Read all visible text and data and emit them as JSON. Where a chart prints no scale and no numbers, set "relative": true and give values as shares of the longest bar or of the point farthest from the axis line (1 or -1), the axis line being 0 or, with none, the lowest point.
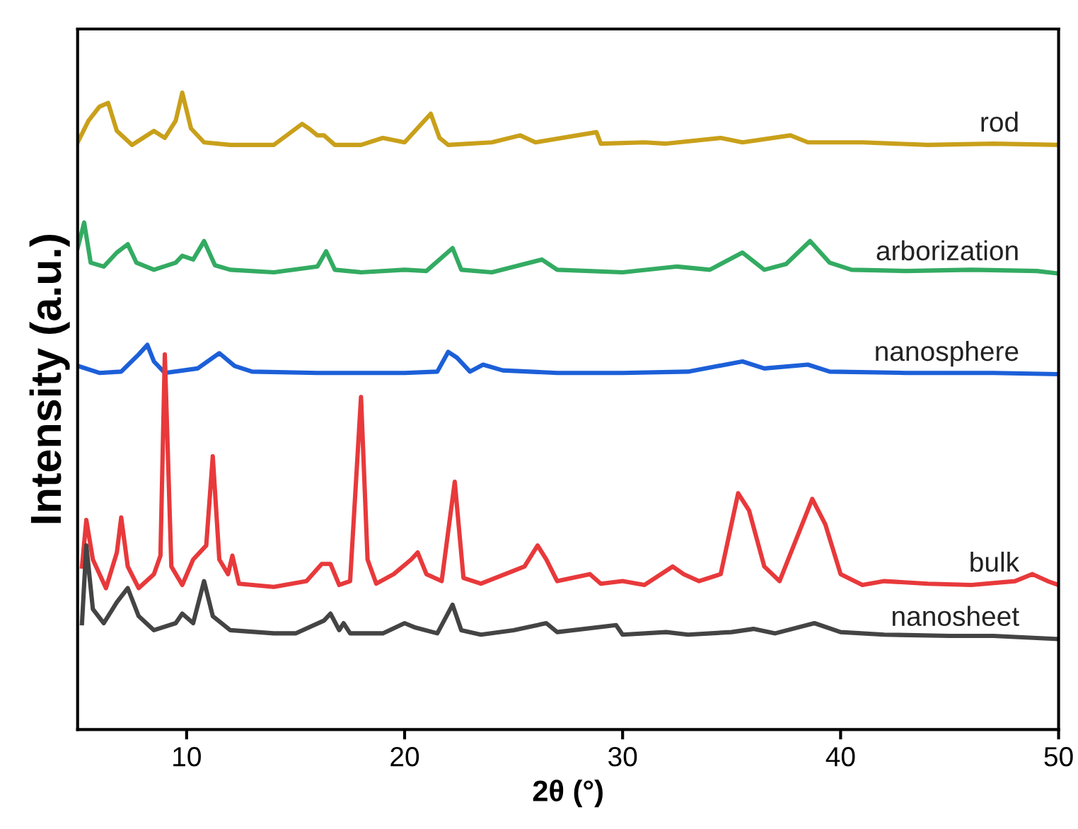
{
  "chart_data": {
    "type": "line",
    "relative": true,
    "xlabel": "2θ (°)",
    "ylabel": "Intensity (a.u.)",
    "xlim": [
      5,
      50
    ],
    "xticks": [
      10,
      20,
      30,
      40,
      50
    ],
    "grid": false,
    "legend": false,
    "tick_labels": "x",
    "marker": "none",
    "line_style": "solid",
    "series": [
      {
        "name": "rod",
        "color": "#c9a01a",
        "x": [
          5,
          5.5,
          6.0,
          6.4,
          6.8,
          7.5,
          8.5,
          9,
          9.5,
          9.8,
          10.2,
          10.8,
          12,
          14,
          15.3,
          15.6,
          16,
          16.3,
          16.8,
          18,
          19,
          20,
          21.2,
          21.6,
          22,
          24,
          25.3,
          26,
          28.8,
          29,
          31,
          32,
          34.5,
          35.5,
          37.7,
          38.5,
          41,
          44,
          47,
          50
        ],
        "values": [
          0.922,
          0.956,
          0.978,
          0.984,
          0.94,
          0.918,
          0.94,
          0.929,
          0.956,
          1.0,
          0.944,
          0.922,
          0.918,
          0.918,
          0.951,
          0.944,
          0.933,
          0.933,
          0.918,
          0.918,
          0.929,
          0.922,
          0.967,
          0.929,
          0.918,
          0.922,
          0.933,
          0.922,
          0.938,
          0.92,
          0.922,
          0.92,
          0.929,
          0.922,
          0.933,
          0.922,
          0.922,
          0.918,
          0.92,
          0.918
        ]
      },
      {
        "name": "arborization",
        "color": "#33ab62",
        "x": [
          5,
          5.3,
          5.6,
          6.2,
          6.8,
          7.3,
          7.7,
          8.5,
          9.5,
          9.8,
          10.3,
          10.8,
          11.3,
          12,
          14,
          16,
          16.4,
          16.8,
          18,
          20,
          21,
          22.2,
          22.6,
          24,
          26.3,
          27,
          30,
          32.5,
          34,
          35.5,
          36.5,
          37.5,
          38.6,
          39.5,
          40.5,
          43,
          46,
          49,
          50
        ],
        "values": [
          0.756,
          0.796,
          0.733,
          0.727,
          0.749,
          0.762,
          0.733,
          0.722,
          0.733,
          0.744,
          0.738,
          0.767,
          0.729,
          0.722,
          0.718,
          0.727,
          0.751,
          0.722,
          0.718,
          0.722,
          0.72,
          0.756,
          0.722,
          0.718,
          0.738,
          0.722,
          0.718,
          0.727,
          0.722,
          0.749,
          0.722,
          0.731,
          0.767,
          0.733,
          0.722,
          0.72,
          0.722,
          0.72,
          0.716
        ]
      },
      {
        "name": "nanosphere",
        "color": "#1c5fd8",
        "x": [
          5,
          6,
          7,
          7.8,
          8.2,
          8.5,
          9,
          10.5,
          11.5,
          12.2,
          13,
          16,
          20,
          21.5,
          22.0,
          22.4,
          23,
          23.6,
          24.5,
          27,
          30,
          33,
          35.5,
          36.5,
          38.5,
          39.5,
          43,
          47,
          50
        ],
        "values": [
          0.571,
          0.56,
          0.562,
          0.589,
          0.604,
          0.578,
          0.56,
          0.567,
          0.591,
          0.571,
          0.562,
          0.56,
          0.56,
          0.562,
          0.593,
          0.584,
          0.562,
          0.573,
          0.564,
          0.56,
          0.56,
          0.562,
          0.578,
          0.567,
          0.573,
          0.562,
          0.56,
          0.56,
          0.558
        ]
      },
      {
        "name": "bulk",
        "color": "#e8393b",
        "x": [
          5.2,
          5.4,
          5.7,
          6.3,
          6.8,
          7.0,
          7.3,
          7.8,
          8.5,
          8.8,
          9.0,
          9.3,
          9.8,
          10.3,
          10.6,
          10.9,
          11.2,
          11.5,
          11.9,
          12.1,
          12.4,
          14,
          15.5,
          16.2,
          16.6,
          17,
          17.5,
          18.0,
          18.3,
          18.7,
          19.5,
          20.3,
          20.6,
          21.0,
          21.7,
          22.3,
          22.7,
          23.5,
          25.5,
          26.1,
          26.5,
          27,
          28.5,
          29,
          30,
          31,
          32.3,
          32.8,
          33.5,
          34.5,
          35.3,
          35.8,
          36.5,
          37.2,
          38.7,
          39.3,
          40,
          41,
          42,
          44,
          46,
          48,
          48.8,
          49.5,
          50
        ],
        "values": [
          0.256,
          0.329,
          0.267,
          0.222,
          0.278,
          0.333,
          0.256,
          0.222,
          0.244,
          0.273,
          0.589,
          0.256,
          0.227,
          0.267,
          0.278,
          0.289,
          0.429,
          0.267,
          0.244,
          0.273,
          0.229,
          0.224,
          0.233,
          0.26,
          0.26,
          0.227,
          0.233,
          0.522,
          0.267,
          0.229,
          0.244,
          0.267,
          0.278,
          0.244,
          0.233,
          0.389,
          0.238,
          0.229,
          0.256,
          0.289,
          0.267,
          0.233,
          0.244,
          0.229,
          0.233,
          0.227,
          0.256,
          0.244,
          0.233,
          0.244,
          0.371,
          0.344,
          0.256,
          0.233,
          0.362,
          0.322,
          0.244,
          0.227,
          0.233,
          0.229,
          0.227,
          0.233,
          0.244,
          0.233,
          0.227
        ]
      },
      {
        "name": "nanosheet",
        "color": "#444444",
        "x": [
          5.2,
          5.4,
          5.7,
          6.2,
          6.8,
          7.3,
          7.8,
          8.5,
          9.5,
          9.8,
          10.3,
          10.8,
          11.2,
          12,
          14,
          15,
          16.3,
          16.6,
          17,
          17.2,
          17.5,
          19,
          20,
          20.5,
          21.5,
          22.2,
          22.6,
          23.5,
          25,
          26.5,
          27,
          29.7,
          30,
          32,
          33,
          35,
          36,
          37,
          38.8,
          40,
          42,
          45,
          47,
          50
        ],
        "values": [
          0.167,
          0.289,
          0.189,
          0.167,
          0.2,
          0.222,
          0.178,
          0.156,
          0.167,
          0.182,
          0.167,
          0.233,
          0.178,
          0.156,
          0.151,
          0.151,
          0.171,
          0.182,
          0.156,
          0.167,
          0.151,
          0.151,
          0.167,
          0.16,
          0.151,
          0.196,
          0.156,
          0.149,
          0.156,
          0.167,
          0.153,
          0.164,
          0.149,
          0.153,
          0.149,
          0.153,
          0.158,
          0.151,
          0.167,
          0.153,
          0.149,
          0.147,
          0.147,
          0.142
        ]
      }
    ]
  }
}
